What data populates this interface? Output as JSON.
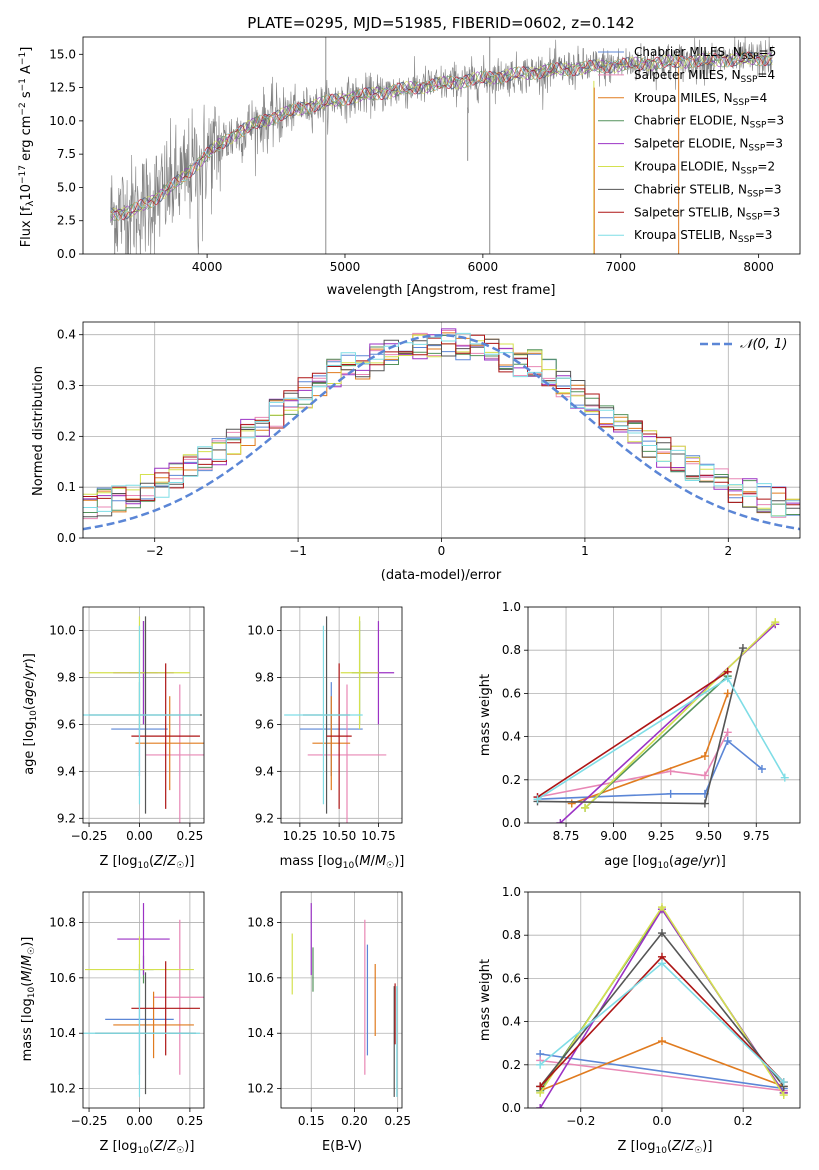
{
  "colors": {
    "Chabrier MILES": "#5b86d6",
    "Salpeter MILES": "#e887b5",
    "Kroupa MILES": "#e07b1f",
    "Chabrier ELODIE": "#54925c",
    "Salpeter ELODIE": "#9b32c4",
    "Kroupa ELODIE": "#d4e14f",
    "Chabrier STELIB": "#555555",
    "Salpeter STELIB": "#ad1515",
    "Kroupa STELIB": "#7fdde6",
    "data": "#808080",
    "normal": "#5b86d6"
  },
  "chart_data": [
    {
      "id": "spectrum",
      "type": "line",
      "title": "PLATE=0295, MJD=51985, FIBERID=0602, z=0.142",
      "xlabel": "wavelength [Angstrom, rest frame]",
      "ylabel": "Flux [f_λ 10^-17 erg cm^-2 s^-1 A^-1]",
      "xlim": [
        3100,
        8300
      ],
      "ylim": [
        0,
        16.3
      ],
      "xticks": [
        4000,
        5000,
        6000,
        7000,
        8000
      ],
      "yticks": [
        0.0,
        2.5,
        5.0,
        7.5,
        10.0,
        12.5,
        15.0
      ],
      "legend_position": "upper right",
      "legend": [
        {
          "label": "Chabrier MILES, N",
          "sub": "SSP",
          "tail": "=5"
        },
        {
          "label": "Salpeter MILES, N",
          "sub": "SSP",
          "tail": "=4"
        },
        {
          "label": "Kroupa MILES, N",
          "sub": "SSP",
          "tail": "=4"
        },
        {
          "label": "Chabrier ELODIE, N",
          "sub": "SSP",
          "tail": "=3"
        },
        {
          "label": "Salpeter ELODIE, N",
          "sub": "SSP",
          "tail": "=3"
        },
        {
          "label": "Kroupa ELODIE, N",
          "sub": "SSP",
          "tail": "=2"
        },
        {
          "label": "Chabrier STELIB, N",
          "sub": "SSP",
          "tail": "=3"
        },
        {
          "label": "Salpeter STELIB, N",
          "sub": "SSP",
          "tail": "=3"
        },
        {
          "label": "Kroupa STELIB, N",
          "sub": "SSP",
          "tail": "=3"
        }
      ],
      "continuum_knots": [
        [
          3300,
          3.0
        ],
        [
          3450,
          3.2
        ],
        [
          3600,
          4.0
        ],
        [
          3800,
          5.5
        ],
        [
          4000,
          7.5
        ],
        [
          4200,
          9.0
        ],
        [
          4400,
          10.0
        ],
        [
          4700,
          11.0
        ],
        [
          5000,
          11.7
        ],
        [
          5500,
          12.5
        ],
        [
          6000,
          13.2
        ],
        [
          6500,
          13.8
        ],
        [
          7000,
          14.2
        ],
        [
          7500,
          14.5
        ],
        [
          8100,
          14.7
        ]
      ]
    },
    {
      "id": "residuals",
      "type": "step",
      "xlabel": "(data-model)/error",
      "ylabel": "Normed distribution",
      "xlim": [
        -2.5,
        2.5
      ],
      "ylim": [
        0,
        0.425
      ],
      "xticks": [
        -2,
        -1,
        0,
        1,
        2
      ],
      "yticks": [
        0.0,
        0.1,
        0.2,
        0.3,
        0.4
      ],
      "legend": [
        "𝒩(0, 1)"
      ],
      "bins": 50
    },
    {
      "id": "age-vs-Z",
      "type": "errorbar",
      "xlabel": "Z [log10(Z/Z☉)]",
      "ylabel": "age  [log10(age/yr)]",
      "xlim": [
        -0.28,
        0.32
      ],
      "ylim": [
        9.18,
        10.1
      ],
      "xticks": [
        -0.25,
        0.0,
        0.25
      ],
      "yticks": [
        9.2,
        9.4,
        9.6,
        9.8,
        10.0
      ],
      "points": [
        {
          "model": "Chabrier MILES",
          "x": 0.0,
          "xerr": 0.14,
          "y": 9.58,
          "yerr": 0.2
        },
        {
          "model": "Salpeter MILES",
          "x": 0.2,
          "xerr": 0.17,
          "y": 9.47,
          "yerr": 0.3
        },
        {
          "model": "Kroupa MILES",
          "x": 0.15,
          "xerr": 0.17,
          "y": 9.52,
          "yerr": 0.2
        },
        {
          "model": "Chabrier ELODIE",
          "x": 0.02,
          "xerr": 0.07,
          "y": 9.82,
          "yerr": 0.22
        },
        {
          "model": "Salpeter ELODIE",
          "x": 0.02,
          "xerr": 0.15,
          "y": 9.82,
          "yerr": 0.22
        },
        {
          "model": "Kroupa ELODIE",
          "x": 0.0,
          "xerr": 0.25,
          "y": 9.82,
          "yerr": 0.24
        },
        {
          "model": "Chabrier STELIB",
          "x": 0.03,
          "xerr": 0.28,
          "y": 9.64,
          "yerr": 0.42
        },
        {
          "model": "Salpeter STELIB",
          "x": 0.13,
          "xerr": 0.17,
          "y": 9.55,
          "yerr": 0.31
        },
        {
          "model": "Kroupa STELIB",
          "x": 0.0,
          "xerr": 0.3,
          "y": 9.64,
          "yerr": 0.38
        }
      ]
    },
    {
      "id": "age-vs-mass",
      "type": "errorbar",
      "xlabel": "mass [log10(M/M☉)]",
      "xlim": [
        10.13,
        10.9
      ],
      "ylim": [
        9.18,
        10.1
      ],
      "xticks": [
        10.25,
        10.5,
        10.75
      ],
      "yticks": [
        9.2,
        9.4,
        9.6,
        9.8,
        10.0
      ],
      "points": [
        {
          "model": "Chabrier MILES",
          "x": 10.45,
          "xerr": 0.2,
          "y": 9.58,
          "yerr": 0.2
        },
        {
          "model": "Salpeter MILES",
          "x": 10.55,
          "xerr": 0.25,
          "y": 9.47,
          "yerr": 0.3
        },
        {
          "model": "Kroupa MILES",
          "x": 10.45,
          "xerr": 0.12,
          "y": 9.52,
          "yerr": 0.2
        },
        {
          "model": "Chabrier ELODIE",
          "x": 10.63,
          "xerr": 0.05,
          "y": 9.82,
          "yerr": 0.22
        },
        {
          "model": "Salpeter ELODIE",
          "x": 10.75,
          "xerr": 0.1,
          "y": 9.82,
          "yerr": 0.22
        },
        {
          "model": "Kroupa ELODIE",
          "x": 10.63,
          "xerr": 0.12,
          "y": 9.82,
          "yerr": 0.24
        },
        {
          "model": "Chabrier STELIB",
          "x": 10.42,
          "xerr": 0.15,
          "y": 9.64,
          "yerr": 0.42
        },
        {
          "model": "Salpeter STELIB",
          "x": 10.5,
          "xerr": 0.08,
          "y": 9.55,
          "yerr": 0.31
        },
        {
          "model": "Kroupa STELIB",
          "x": 10.4,
          "xerr": 0.25,
          "y": 9.64,
          "yerr": 0.38
        }
      ]
    },
    {
      "id": "massweight-vs-age",
      "type": "line",
      "xlabel": "age  [log10(age/yr)]",
      "ylabel": "mass weight",
      "xlim": [
        8.55,
        9.98
      ],
      "ylim": [
        0,
        1.0
      ],
      "xticks": [
        8.75,
        9.0,
        9.25,
        9.5,
        9.75
      ],
      "yticks": [
        0.0,
        0.2,
        0.4,
        0.6,
        0.8,
        1.0
      ],
      "series": [
        {
          "model": "Chabrier MILES",
          "x": [
            8.6,
            9.3,
            9.48,
            9.6,
            9.78
          ],
          "y": [
            0.11,
            0.135,
            0.135,
            0.38,
            0.25
          ]
        },
        {
          "model": "Salpeter MILES",
          "x": [
            8.6,
            9.3,
            9.48,
            9.6
          ],
          "y": [
            0.12,
            0.24,
            0.22,
            0.42
          ]
        },
        {
          "model": "Kroupa MILES",
          "x": [
            8.78,
            9.48,
            9.6
          ],
          "y": [
            0.09,
            0.31,
            0.6
          ]
        },
        {
          "model": "Chabrier ELODIE",
          "x": [
            8.85,
            9.6
          ],
          "y": [
            0.07,
            0.68
          ]
        },
        {
          "model": "Salpeter ELODIE",
          "x": [
            8.72,
            9.85
          ],
          "y": [
            0.0,
            0.92
          ]
        },
        {
          "model": "Kroupa ELODIE",
          "x": [
            8.85,
            9.85
          ],
          "y": [
            0.07,
            0.93
          ]
        },
        {
          "model": "Chabrier STELIB",
          "x": [
            8.6,
            9.48,
            9.68
          ],
          "y": [
            0.1,
            0.09,
            0.81
          ]
        },
        {
          "model": "Salpeter STELIB",
          "x": [
            8.6,
            9.6
          ],
          "y": [
            0.12,
            0.7
          ]
        },
        {
          "model": "Kroupa STELIB",
          "x": [
            8.6,
            9.6,
            9.9
          ],
          "y": [
            0.11,
            0.67,
            0.21
          ]
        }
      ]
    },
    {
      "id": "mass-vs-Z",
      "type": "errorbar",
      "xlabel": "Z [log10(Z/Z☉)]",
      "ylabel": "mass [log10(M/M☉)]",
      "xlim": [
        -0.28,
        0.32
      ],
      "ylim": [
        10.13,
        10.91
      ],
      "xticks": [
        -0.25,
        0.0,
        0.25
      ],
      "yticks": [
        10.2,
        10.4,
        10.6,
        10.8
      ],
      "points": [
        {
          "model": "Chabrier MILES",
          "x": 0.0,
          "xerr": 0.17,
          "y": 10.45,
          "yerr": 0.2
        },
        {
          "model": "Salpeter MILES",
          "x": 0.2,
          "xerr": 0.13,
          "y": 10.53,
          "yerr": 0.28
        },
        {
          "model": "Kroupa MILES",
          "x": 0.07,
          "xerr": 0.2,
          "y": 10.43,
          "yerr": 0.12
        },
        {
          "model": "Chabrier ELODIE",
          "x": 0.02,
          "xerr": 0.05,
          "y": 10.63,
          "yerr": 0.05
        },
        {
          "model": "Salpeter ELODIE",
          "x": 0.02,
          "xerr": 0.13,
          "y": 10.74,
          "yerr": 0.13
        },
        {
          "model": "Kroupa ELODIE",
          "x": 0.0,
          "xerr": 0.27,
          "y": 10.63,
          "yerr": 0.12
        },
        {
          "model": "Chabrier STELIB",
          "x": 0.03,
          "xerr": 0.25,
          "y": 10.4,
          "yerr": 0.22
        },
        {
          "model": "Salpeter STELIB",
          "x": 0.13,
          "xerr": 0.17,
          "y": 10.49,
          "yerr": 0.17
        },
        {
          "model": "Kroupa STELIB",
          "x": 0.0,
          "xerr": 0.3,
          "y": 10.4,
          "yerr": 0.23
        }
      ]
    },
    {
      "id": "mass-vs-EBV",
      "type": "errorbar",
      "xlabel": "E(B-V)",
      "xlim": [
        0.115,
        0.255
      ],
      "ylim": [
        10.13,
        10.91
      ],
      "xticks": [
        0.15,
        0.2,
        0.25
      ],
      "yticks": [
        10.2,
        10.4,
        10.6,
        10.8
      ],
      "points": [
        {
          "model": "Chabrier MILES",
          "x": 0.215,
          "yerr": 0.2,
          "y": 10.52
        },
        {
          "model": "Salpeter MILES",
          "x": 0.212,
          "yerr": 0.28,
          "y": 10.53
        },
        {
          "model": "Kroupa MILES",
          "x": 0.224,
          "yerr": 0.13,
          "y": 10.52
        },
        {
          "model": "Chabrier ELODIE",
          "x": 0.152,
          "yerr": 0.08,
          "y": 10.63
        },
        {
          "model": "Salpeter ELODIE",
          "x": 0.15,
          "yerr": 0.13,
          "y": 10.74
        },
        {
          "model": "Kroupa ELODIE",
          "x": 0.128,
          "yerr": 0.11,
          "y": 10.65
        },
        {
          "model": "Chabrier STELIB",
          "x": 0.246,
          "yerr": 0.2,
          "y": 10.37
        },
        {
          "model": "Salpeter STELIB",
          "x": 0.247,
          "yerr": 0.11,
          "y": 10.47
        },
        {
          "model": "Kroupa STELIB",
          "x": 0.249,
          "yerr": 0.2,
          "y": 10.37
        }
      ]
    },
    {
      "id": "massweight-vs-Z",
      "type": "line",
      "xlabel": "Z [log10(Z/Z☉)]",
      "ylabel": "mass weight",
      "xlim": [
        -0.33,
        0.34
      ],
      "ylim": [
        0,
        1.0
      ],
      "xticks": [
        -0.2,
        0.0,
        0.2
      ],
      "yticks": [
        0.0,
        0.2,
        0.4,
        0.6,
        0.8,
        1.0
      ],
      "series": [
        {
          "model": "Chabrier MILES",
          "x": [
            -0.3,
            0.3
          ],
          "y": [
            0.25,
            0.09
          ]
        },
        {
          "model": "Salpeter MILES",
          "x": [
            -0.3,
            0.3
          ],
          "y": [
            0.22,
            0.08
          ]
        },
        {
          "model": "Kroupa MILES",
          "x": [
            -0.3,
            0.0,
            0.3
          ],
          "y": [
            0.08,
            0.31,
            0.1
          ]
        },
        {
          "model": "Chabrier ELODIE",
          "x": [
            -0.3,
            0.0,
            0.3
          ],
          "y": [
            0.08,
            0.92,
            0.07
          ]
        },
        {
          "model": "Salpeter ELODIE",
          "x": [
            -0.3,
            0.0,
            0.3
          ],
          "y": [
            0.0,
            0.92,
            0.07
          ]
        },
        {
          "model": "Kroupa ELODIE",
          "x": [
            -0.3,
            0.0,
            0.3
          ],
          "y": [
            0.07,
            0.93,
            0.06
          ]
        },
        {
          "model": "Chabrier STELIB",
          "x": [
            -0.3,
            0.0,
            0.3
          ],
          "y": [
            0.1,
            0.81,
            0.1
          ]
        },
        {
          "model": "Salpeter STELIB",
          "x": [
            -0.3,
            0.0,
            0.3
          ],
          "y": [
            0.1,
            0.7,
            0.12
          ]
        },
        {
          "model": "Kroupa STELIB",
          "x": [
            -0.3,
            0.0,
            0.3
          ],
          "y": [
            0.2,
            0.67,
            0.12
          ]
        }
      ]
    }
  ]
}
